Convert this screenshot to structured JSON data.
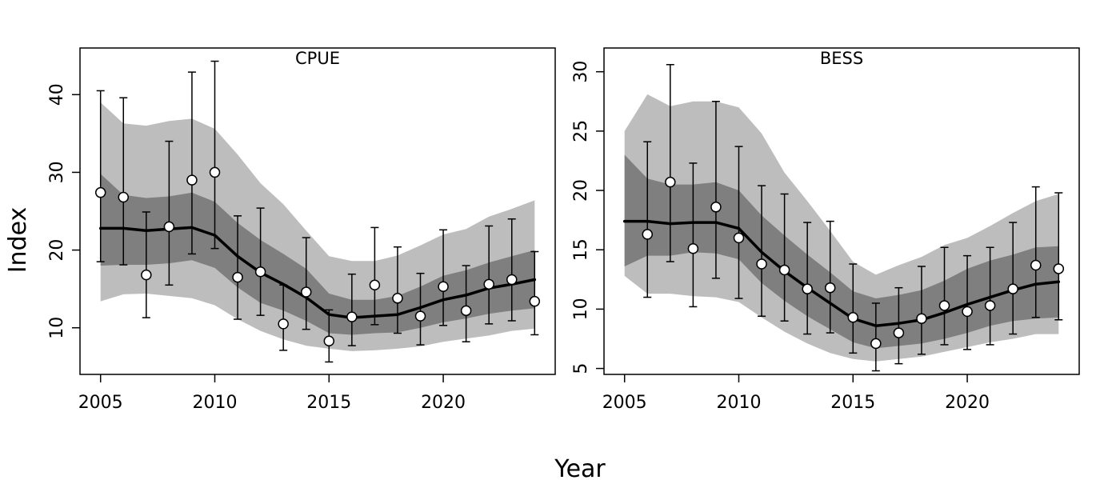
{
  "figure": {
    "xlabel": "Year",
    "ylabel": "Index"
  },
  "colors": {
    "outer_band": "#bdbdbd",
    "inner_band": "#7f7f7f",
    "line": "#000000",
    "points_fill": "#ffffff",
    "points_stroke": "#000000"
  },
  "chart_data": [
    {
      "type": "line",
      "title": "CPUE",
      "xlim": [
        2004.1,
        2024.9
      ],
      "ylim": [
        4,
        46
      ],
      "xticks": [
        2005,
        2010,
        2015,
        2020
      ],
      "yticks": [
        10,
        20,
        30,
        40
      ],
      "years": [
        2005,
        2006,
        2007,
        2008,
        2009,
        2010,
        2011,
        2012,
        2013,
        2014,
        2015,
        2016,
        2017,
        2018,
        2019,
        2020,
        2021,
        2022,
        2023,
        2024
      ],
      "fit": [
        22.8,
        22.8,
        22.5,
        22.7,
        22.9,
        21.9,
        19.2,
        17.1,
        15.6,
        13.9,
        11.7,
        11.3,
        11.5,
        11.7,
        12.6,
        13.6,
        14.2,
        15.1,
        15.6,
        16.2
      ],
      "inner_lower": [
        18.0,
        18.1,
        18.1,
        18.3,
        18.7,
        17.7,
        15.2,
        13.2,
        12.2,
        10.9,
        9.3,
        9.1,
        9.3,
        9.4,
        10.0,
        10.7,
        11.2,
        11.8,
        12.2,
        12.5
      ],
      "inner_upper": [
        29.8,
        27.1,
        26.7,
        26.9,
        27.4,
        26.2,
        23.5,
        21.3,
        19.5,
        17.6,
        14.4,
        13.6,
        13.6,
        14.1,
        15.3,
        16.7,
        17.4,
        18.4,
        19.2,
        20.0
      ],
      "outer_lower": [
        13.4,
        14.3,
        14.4,
        14.1,
        13.8,
        12.9,
        11.1,
        9.6,
        8.5,
        7.7,
        7.3,
        7.0,
        7.1,
        7.3,
        7.6,
        8.2,
        8.6,
        9.0,
        9.6,
        9.9
      ],
      "outer_upper": [
        39.0,
        36.3,
        36.0,
        36.6,
        36.9,
        35.6,
        32.3,
        28.6,
        25.9,
        22.5,
        19.2,
        18.6,
        18.6,
        19.3,
        20.6,
        22.0,
        22.7,
        24.3,
        25.3,
        26.4
      ],
      "obs_years": [
        2005,
        2006,
        2007,
        2008,
        2009,
        2010,
        2011,
        2012,
        2013,
        2014,
        2015,
        2016,
        2017,
        2018,
        2019,
        2020,
        2021,
        2022,
        2023,
        2024
      ],
      "obs": [
        27.4,
        26.8,
        16.8,
        23.0,
        29.0,
        30.0,
        16.5,
        17.2,
        10.5,
        14.6,
        8.3,
        11.4,
        15.5,
        13.8,
        11.5,
        15.3,
        12.2,
        15.6,
        16.2,
        13.4
      ],
      "obs_lower": [
        18.5,
        18.1,
        11.3,
        15.5,
        19.5,
        20.2,
        11.1,
        11.6,
        7.1,
        9.8,
        5.6,
        7.7,
        10.4,
        9.3,
        7.8,
        10.3,
        8.2,
        10.5,
        10.9,
        9.1
      ],
      "obs_upper": [
        40.5,
        39.6,
        24.9,
        34.0,
        42.9,
        44.3,
        24.4,
        25.4,
        15.5,
        21.6,
        12.3,
        16.9,
        22.9,
        20.4,
        17.0,
        22.6,
        18.0,
        23.1,
        24.0,
        19.8
      ]
    },
    {
      "type": "line",
      "title": "BESS",
      "xlim": [
        2004.1,
        2024.9
      ],
      "ylim": [
        4.5,
        32.0
      ],
      "xticks": [
        2005,
        2010,
        2015,
        2020
      ],
      "yticks": [
        5,
        10,
        15,
        20,
        25,
        30
      ],
      "years": [
        2005,
        2006,
        2007,
        2008,
        2009,
        2010,
        2011,
        2012,
        2013,
        2014,
        2015,
        2016,
        2017,
        2018,
        2019,
        2020,
        2021,
        2022,
        2023,
        2024
      ],
      "fit": [
        17.4,
        17.4,
        17.2,
        17.3,
        17.3,
        16.8,
        14.8,
        13.2,
        11.8,
        10.5,
        9.2,
        8.6,
        8.8,
        9.1,
        9.7,
        10.4,
        11.0,
        11.6,
        12.1,
        12.3
      ],
      "inner_lower": [
        13.6,
        14.5,
        14.5,
        14.8,
        14.7,
        14.2,
        12.2,
        10.7,
        9.4,
        8.3,
        7.2,
        6.7,
        6.9,
        7.1,
        7.5,
        8.0,
        8.6,
        9.0,
        9.2,
        9.3
      ],
      "inner_upper": [
        23.0,
        21.0,
        20.5,
        20.5,
        20.7,
        20.0,
        17.9,
        16.2,
        14.6,
        13.1,
        11.5,
        10.9,
        11.2,
        11.6,
        12.4,
        13.4,
        14.1,
        14.6,
        15.2,
        15.3
      ],
      "outer_lower": [
        12.8,
        11.3,
        11.3,
        11.1,
        11.0,
        10.6,
        9.3,
        8.1,
        7.1,
        6.3,
        5.8,
        5.6,
        5.8,
        6.0,
        6.4,
        6.8,
        7.2,
        7.5,
        7.9,
        7.9
      ],
      "outer_upper": [
        25.0,
        28.1,
        27.1,
        27.5,
        27.5,
        27.0,
        24.8,
        21.5,
        19.1,
        16.6,
        14.0,
        12.9,
        13.7,
        14.4,
        15.4,
        16.0,
        17.0,
        18.1,
        19.1,
        19.7
      ],
      "obs_years": [
        2006,
        2007,
        2008,
        2009,
        2010,
        2011,
        2012,
        2013,
        2014,
        2015,
        2016,
        2017,
        2018,
        2019,
        2020,
        2021,
        2022,
        2023,
        2024
      ],
      "obs": [
        16.3,
        20.7,
        15.1,
        18.6,
        16.0,
        13.8,
        13.3,
        11.7,
        11.8,
        9.3,
        7.1,
        8.0,
        9.2,
        10.3,
        9.8,
        10.3,
        11.7,
        13.7,
        13.4
      ],
      "obs_lower": [
        11.0,
        14.0,
        10.2,
        12.6,
        10.9,
        9.4,
        9.0,
        7.9,
        8.0,
        6.3,
        4.8,
        5.4,
        6.2,
        7.0,
        6.6,
        7.0,
        7.9,
        9.3,
        9.1
      ],
      "obs_upper": [
        24.1,
        30.6,
        22.3,
        27.5,
        23.7,
        20.4,
        19.7,
        17.3,
        17.4,
        13.8,
        10.5,
        11.8,
        13.6,
        15.2,
        14.5,
        15.2,
        17.3,
        20.3,
        19.8
      ]
    }
  ]
}
